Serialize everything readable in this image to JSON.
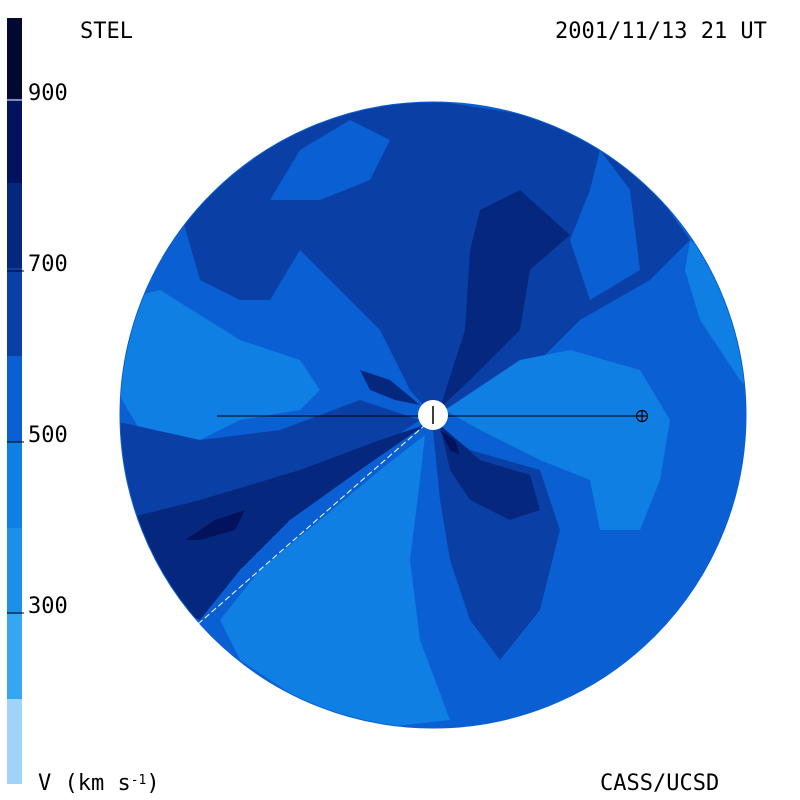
{
  "header": {
    "left_label": "STEL",
    "date_label": "2001/11/13 21 UT"
  },
  "footer": {
    "unit_prefix": "V (km s",
    "unit_exponent": "-1",
    "unit_suffix": ")",
    "credit": "CASS/UCSD"
  },
  "colorbar": {
    "ticks": [
      "900",
      "700",
      "500",
      "300"
    ],
    "colors": [
      "#9fd3f8",
      "#34a6f2",
      "#0f7fe3",
      "#0a5fd3",
      "#0a40a6",
      "#05287e",
      "#02125c",
      "#010933"
    ]
  },
  "palette": {
    "white": "#ffffff",
    "black": "#000000"
  }
}
